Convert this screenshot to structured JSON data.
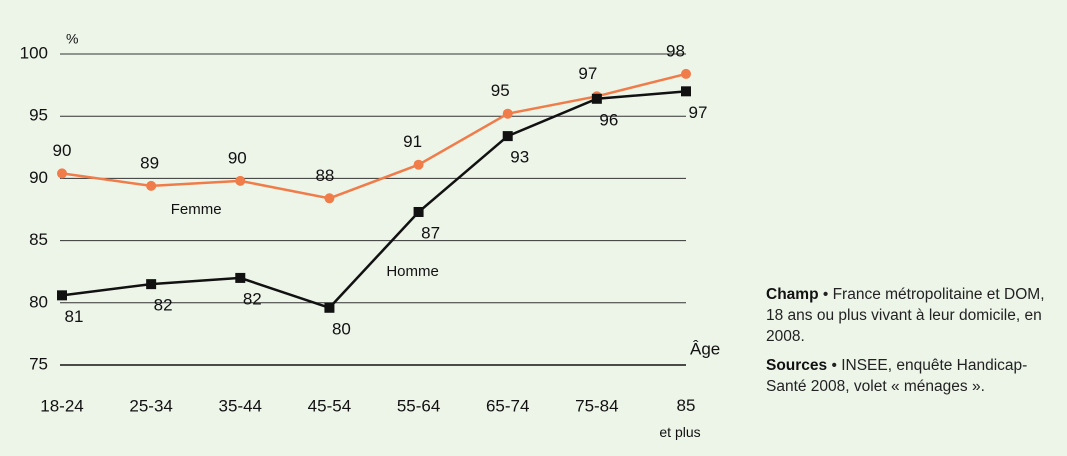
{
  "chart_data": {
    "type": "line",
    "y_label": "%",
    "x_label": "Âge",
    "categories": [
      "18-24",
      "25-34",
      "35-44",
      "45-54",
      "55-64",
      "65-74",
      "75-84",
      "85 et plus"
    ],
    "series": [
      {
        "name": "Femme",
        "color": "#f07c4a",
        "marker": "circle",
        "values": [
          90.4,
          89.4,
          89.8,
          88.4,
          91.1,
          95.2,
          96.6,
          98.4
        ],
        "value_labels": [
          "90",
          "89",
          "90",
          "88",
          "91",
          "95",
          "97",
          "98"
        ]
      },
      {
        "name": "Homme",
        "color": "#111111",
        "marker": "square",
        "values": [
          80.6,
          81.5,
          82.0,
          79.6,
          87.3,
          93.4,
          96.4,
          97.0
        ],
        "value_labels": [
          "81",
          "82",
          "82",
          "80",
          "87",
          "93",
          "96",
          "97"
        ]
      }
    ],
    "ylim": [
      75,
      100
    ],
    "yticks": [
      75,
      80,
      85,
      90,
      95,
      100
    ],
    "grid": true
  },
  "notes": [
    {
      "label": "Champ",
      "text": "France métropolitaine et DOM, 18 ans ou plus vivant à leur domicile, en 2008."
    },
    {
      "label": "Sources",
      "text": "INSEE, enquête Handicap-Santé 2008, volet « ménages »."
    }
  ]
}
